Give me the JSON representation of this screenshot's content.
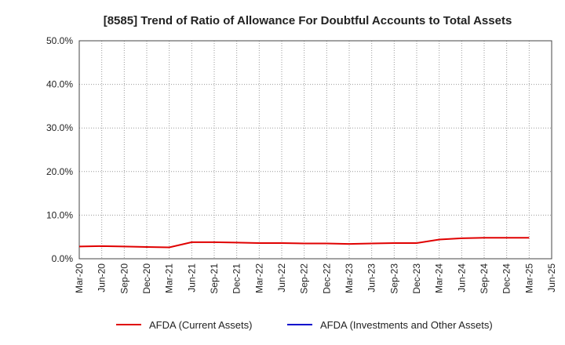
{
  "chart_data": {
    "type": "line",
    "title": "[8585]  Trend of Ratio of Allowance For Doubtful Accounts to Total Assets",
    "xlabel": "",
    "ylabel": "",
    "ylim": [
      0,
      50
    ],
    "y_tick_labels": [
      "0.0%",
      "10.0%",
      "20.0%",
      "30.0%",
      "40.0%",
      "50.0%"
    ],
    "categories": [
      "Mar-20",
      "Jun-20",
      "Sep-20",
      "Dec-20",
      "Mar-21",
      "Jun-21",
      "Sep-21",
      "Dec-21",
      "Mar-22",
      "Jun-22",
      "Sep-22",
      "Dec-22",
      "Mar-23",
      "Jun-23",
      "Sep-23",
      "Dec-23",
      "Mar-24",
      "Jun-24",
      "Sep-24",
      "Dec-24",
      "Mar-25",
      "Jun-25"
    ],
    "grid": true,
    "legend_position": "bottom",
    "series": [
      {
        "name": "AFDA (Current Assets)",
        "color": "#e00000",
        "values": [
          2.8,
          2.9,
          2.8,
          2.7,
          2.6,
          3.8,
          3.8,
          3.7,
          3.6,
          3.6,
          3.5,
          3.5,
          3.4,
          3.5,
          3.6,
          3.6,
          4.4,
          4.7,
          4.8,
          4.8,
          4.8,
          null
        ]
      },
      {
        "name": "AFDA (Investments and Other Assets)",
        "color": "#0000cc",
        "values": [
          null,
          null,
          null,
          null,
          null,
          null,
          null,
          null,
          null,
          null,
          null,
          null,
          null,
          null,
          null,
          null,
          null,
          null,
          null,
          null,
          null,
          null
        ]
      }
    ]
  }
}
